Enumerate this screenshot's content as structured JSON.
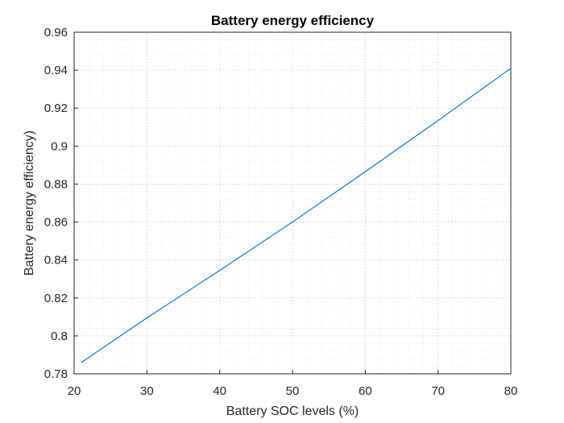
{
  "chart_data": {
    "type": "line",
    "title": "Battery energy efficiency",
    "xlabel": "Battery SOC levels (%)",
    "ylabel": "Battery energy efficiency)",
    "xlim": [
      20,
      80
    ],
    "ylim": [
      0.78,
      0.96
    ],
    "xticks": [
      20,
      30,
      40,
      50,
      60,
      70,
      80
    ],
    "yticks": [
      0.78,
      0.8,
      0.82,
      0.84,
      0.86,
      0.88,
      0.9,
      0.92,
      0.94,
      0.96
    ],
    "xtick_labels": [
      "20",
      "30",
      "40",
      "50",
      "60",
      "70",
      "80"
    ],
    "ytick_labels": [
      "0.78",
      "0.8",
      "0.82",
      "0.84",
      "0.86",
      "0.88",
      "0.9",
      "0.92",
      "0.94",
      "0.96"
    ],
    "grid": true,
    "minor_grid": true,
    "series": [
      {
        "color": "#0072bd",
        "x": [
          21,
          30,
          40,
          50,
          60,
          70,
          80
        ],
        "y": [
          0.786,
          0.8095,
          0.8345,
          0.86,
          0.8865,
          0.9135,
          0.941
        ]
      }
    ]
  }
}
